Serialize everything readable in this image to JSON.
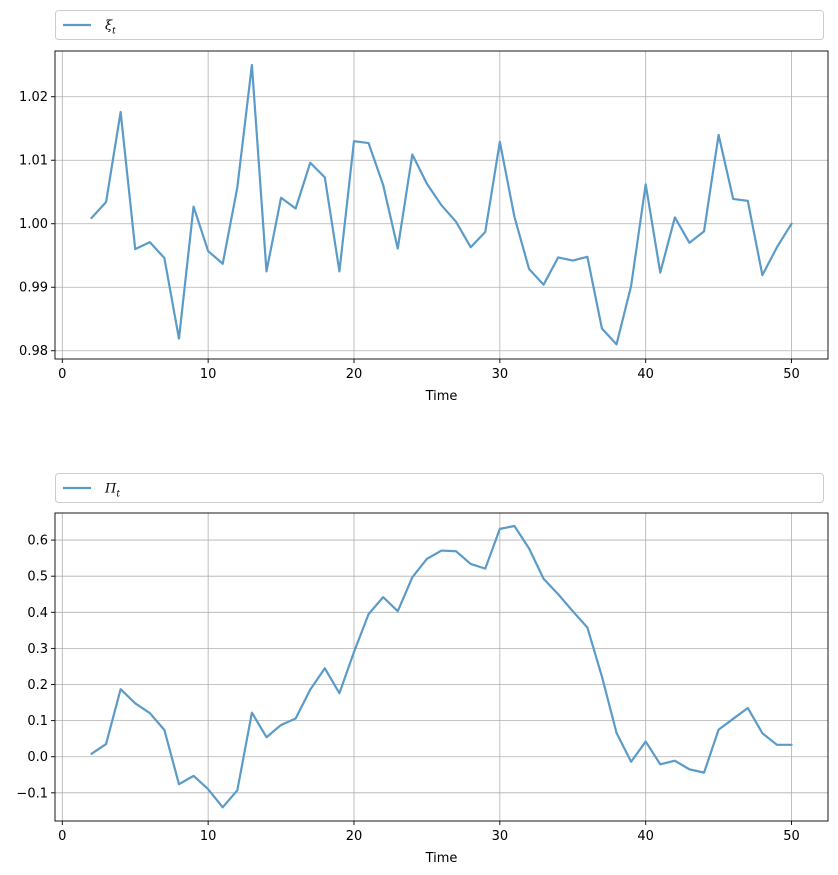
{
  "chart_data": [
    {
      "type": "line",
      "xlabel": "Time",
      "ylabel": "",
      "xlim": [
        -0.5,
        52.5
      ],
      "ylim": [
        0.9787,
        1.0272
      ],
      "xticks": [
        0,
        10,
        20,
        30,
        40,
        50
      ],
      "yticks": [
        0.98,
        0.99,
        1.0,
        1.01,
        1.02
      ],
      "ytick_labels": [
        "0.98",
        "0.99",
        "1.00",
        "1.01",
        "1.02"
      ],
      "grid": true,
      "legend_position": "top",
      "legend": {
        "symbol": "ξ",
        "sub": "t"
      },
      "color": "#5b9bc8",
      "series": [
        {
          "x": [
            2,
            3,
            4,
            5,
            6,
            7,
            8,
            9,
            10,
            11,
            12,
            13,
            14,
            15,
            16,
            17,
            18,
            19,
            20,
            21,
            22,
            23,
            24,
            25,
            26,
            27,
            28,
            29,
            30,
            31,
            32,
            33,
            34,
            35,
            36,
            37,
            38,
            39,
            40,
            41,
            42,
            43,
            44,
            45,
            46,
            47,
            48,
            49,
            50
          ],
          "values": [
            1.0009,
            1.0034,
            1.0176,
            0.996,
            0.9971,
            0.9946,
            0.9819,
            1.0027,
            0.9957,
            0.9937,
            1.0057,
            1.025,
            0.9925,
            1.0041,
            1.0024,
            1.0096,
            1.0073,
            0.9925,
            1.013,
            1.0127,
            1.0061,
            0.9961,
            1.0109,
            1.0063,
            1.0029,
            1.0003,
            0.9963,
            0.9987,
            1.0129,
            1.0011,
            0.9929,
            0.9904,
            0.9947,
            0.9942,
            0.9948,
            0.9835,
            0.981,
            0.9902,
            1.0062,
            0.9923,
            1.001,
            0.997,
            0.9988,
            1.014,
            1.0039,
            1.0036,
            0.9919,
            0.9963,
            1.0
          ]
        }
      ]
    },
    {
      "type": "line",
      "xlabel": "Time",
      "ylabel": "",
      "xlim": [
        -0.5,
        52.5
      ],
      "ylim": [
        -0.178,
        0.675
      ],
      "xticks": [
        0,
        10,
        20,
        30,
        40,
        50
      ],
      "yticks": [
        -0.1,
        0.0,
        0.1,
        0.2,
        0.3,
        0.4,
        0.5,
        0.6
      ],
      "ytick_labels": [
        "−0.1",
        "0.0",
        "0.1",
        "0.2",
        "0.3",
        "0.4",
        "0.5",
        "0.6"
      ],
      "grid": true,
      "legend_position": "top",
      "legend": {
        "symbol": "Π",
        "sub": "t"
      },
      "color": "#5b9bc8",
      "series": [
        {
          "x": [
            2,
            3,
            4,
            5,
            6,
            7,
            8,
            9,
            10,
            11,
            12,
            13,
            14,
            15,
            16,
            17,
            18,
            19,
            20,
            21,
            22,
            23,
            24,
            25,
            26,
            27,
            28,
            29,
            30,
            31,
            32,
            33,
            34,
            35,
            36,
            37,
            38,
            39,
            40,
            41,
            42,
            43,
            44,
            45,
            46,
            47,
            48,
            49,
            50
          ],
          "values": [
            0.008,
            0.035,
            0.187,
            0.148,
            0.121,
            0.074,
            -0.076,
            -0.053,
            -0.09,
            -0.14,
            -0.093,
            0.122,
            0.054,
            0.088,
            0.106,
            0.186,
            0.245,
            0.176,
            0.29,
            0.395,
            0.442,
            0.403,
            0.497,
            0.548,
            0.571,
            0.569,
            0.534,
            0.521,
            0.631,
            0.639,
            0.577,
            0.493,
            0.45,
            0.403,
            0.358,
            0.222,
            0.066,
            -0.014,
            0.042,
            -0.021,
            -0.011,
            -0.035,
            -0.044,
            0.075,
            0.105,
            0.135,
            0.065,
            0.033,
            0.033
          ]
        }
      ]
    }
  ]
}
